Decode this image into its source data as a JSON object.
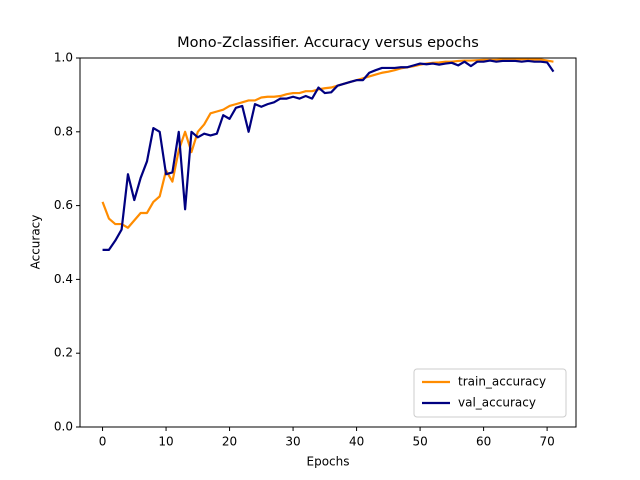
{
  "chart_data": {
    "type": "line",
    "title": "Mono-Zclassifier. Accuracy versus epochs",
    "xlabel": "Epochs",
    "ylabel": "Accuracy",
    "x": [
      0,
      1,
      2,
      3,
      4,
      5,
      6,
      7,
      8,
      9,
      10,
      11,
      12,
      13,
      14,
      15,
      16,
      17,
      18,
      19,
      20,
      21,
      22,
      23,
      24,
      25,
      26,
      27,
      28,
      29,
      30,
      31,
      32,
      33,
      34,
      35,
      36,
      37,
      38,
      39,
      40,
      41,
      42,
      43,
      44,
      45,
      46,
      47,
      48,
      49,
      50,
      51,
      52,
      53,
      54,
      55,
      56,
      57,
      58,
      59,
      60,
      61,
      62,
      63,
      64,
      65,
      66,
      67,
      68,
      69,
      70,
      71
    ],
    "series": [
      {
        "name": "train_accuracy",
        "color": "#ff8c00",
        "values": [
          0.61,
          0.565,
          0.55,
          0.55,
          0.54,
          0.56,
          0.58,
          0.58,
          0.61,
          0.625,
          0.695,
          0.665,
          0.75,
          0.8,
          0.745,
          0.8,
          0.82,
          0.85,
          0.855,
          0.86,
          0.87,
          0.875,
          0.88,
          0.885,
          0.885,
          0.893,
          0.895,
          0.895,
          0.897,
          0.902,
          0.905,
          0.905,
          0.91,
          0.91,
          0.915,
          0.918,
          0.92,
          0.925,
          0.93,
          0.935,
          0.94,
          0.945,
          0.95,
          0.955,
          0.96,
          0.963,
          0.967,
          0.972,
          0.975,
          0.978,
          0.982,
          0.985,
          0.987,
          0.988,
          0.99,
          0.99,
          0.992,
          0.993,
          0.993,
          0.994,
          0.995,
          0.995,
          0.995,
          0.996,
          0.996,
          0.996,
          0.997,
          0.997,
          0.996,
          0.996,
          0.993,
          0.99
        ]
      },
      {
        "name": "val_accuracy",
        "color": "#000080",
        "values": [
          0.48,
          0.48,
          0.505,
          0.535,
          0.685,
          0.615,
          0.675,
          0.72,
          0.81,
          0.8,
          0.685,
          0.69,
          0.8,
          0.59,
          0.8,
          0.785,
          0.795,
          0.79,
          0.795,
          0.845,
          0.835,
          0.865,
          0.87,
          0.8,
          0.875,
          0.868,
          0.875,
          0.88,
          0.89,
          0.89,
          0.895,
          0.89,
          0.897,
          0.89,
          0.92,
          0.905,
          0.907,
          0.925,
          0.93,
          0.935,
          0.94,
          0.94,
          0.96,
          0.967,
          0.973,
          0.973,
          0.973,
          0.975,
          0.975,
          0.98,
          0.985,
          0.983,
          0.985,
          0.982,
          0.985,
          0.987,
          0.98,
          0.99,
          0.978,
          0.99,
          0.99,
          0.993,
          0.99,
          0.992,
          0.992,
          0.992,
          0.99,
          0.992,
          0.99,
          0.99,
          0.988,
          0.963
        ]
      }
    ],
    "xlim": [
      -3.55,
      74.55
    ],
    "xticks": [
      0,
      10,
      20,
      30,
      40,
      50,
      60,
      70
    ],
    "ylim": [
      0,
      1
    ],
    "yticks": [
      {
        "value": 0,
        "label": "0.0"
      },
      {
        "value": 0.2,
        "label": "0.2"
      },
      {
        "value": 0.4,
        "label": "0.4"
      },
      {
        "value": 0.6,
        "label": "0.6"
      },
      {
        "value": 0.8,
        "label": "0.8"
      },
      {
        "value": 1,
        "label": "1.0"
      }
    ],
    "grid": false,
    "legend": "lower right"
  }
}
